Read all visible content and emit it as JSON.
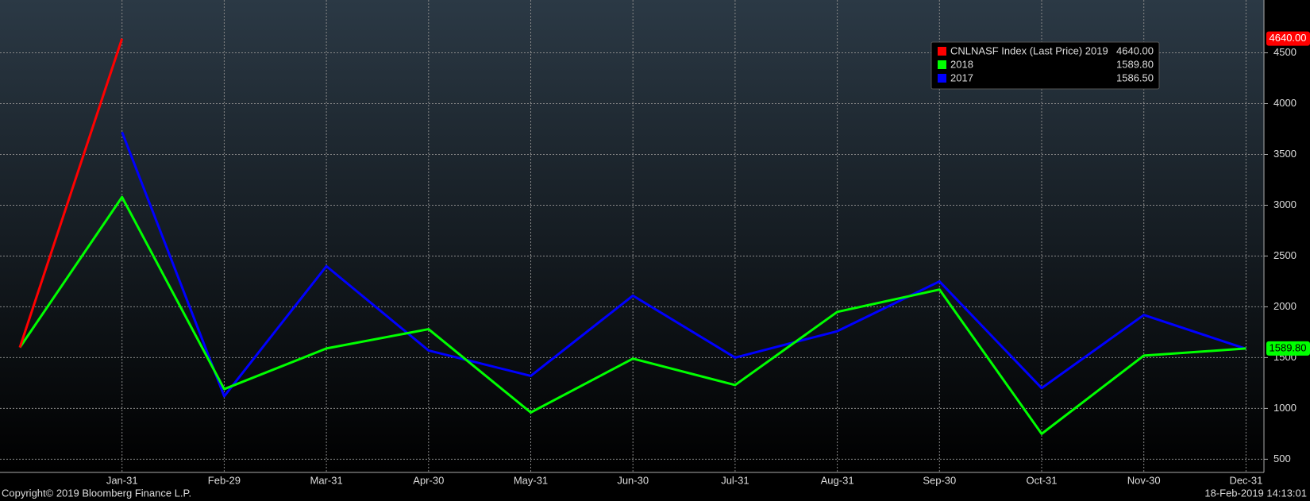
{
  "chart_data": {
    "type": "line",
    "categories": [
      null,
      "Jan-31",
      "Feb-29",
      "Mar-31",
      "Apr-30",
      "May-31",
      "Jun-30",
      "Jul-31",
      "Aug-31",
      "Sep-30",
      "Oct-31",
      "Nov-30",
      "Dec-31"
    ],
    "series": [
      {
        "name": "CNLNASF Index (Last Price) 2019",
        "color": "#ff0000",
        "values": [
          1600,
          4640,
          null,
          null,
          null,
          null,
          null,
          null,
          null,
          null,
          null,
          null,
          null
        ],
        "value_labels": [
          null,
          "4640.00",
          null,
          null,
          null,
          null,
          null,
          null,
          null,
          null,
          null,
          null,
          null
        ]
      },
      {
        "name": "2018",
        "color": "#00ff00",
        "values": [
          1600,
          3080,
          1190,
          1590,
          1780,
          960,
          1490,
          1230,
          1950,
          2170,
          750,
          1520,
          1589.8
        ],
        "value_labels": [
          null,
          null,
          null,
          null,
          null,
          null,
          null,
          null,
          null,
          null,
          null,
          null,
          "1589.80"
        ]
      },
      {
        "name": "2017",
        "color": "#0000ff",
        "values": [
          null,
          3720,
          1120,
          2400,
          1570,
          1320,
          2110,
          1500,
          1760,
          2250,
          1200,
          1920,
          1586.5
        ],
        "value_labels": [
          null,
          null,
          null,
          null,
          null,
          null,
          null,
          null,
          null,
          null,
          null,
          null,
          "1586.50"
        ]
      }
    ],
    "ylim": [
      370,
      5020
    ],
    "yticks": [
      500,
      1000,
      1500,
      2000,
      2500,
      3000,
      3500,
      4000,
      4500
    ],
    "grid": true,
    "legend": "upper right",
    "axis_tags": [
      0,
      1
    ],
    "copyright": "Copyright© 2019 Bloomberg Finance L.P.",
    "timestamp": "18-Feb-2019 14:13:01"
  }
}
